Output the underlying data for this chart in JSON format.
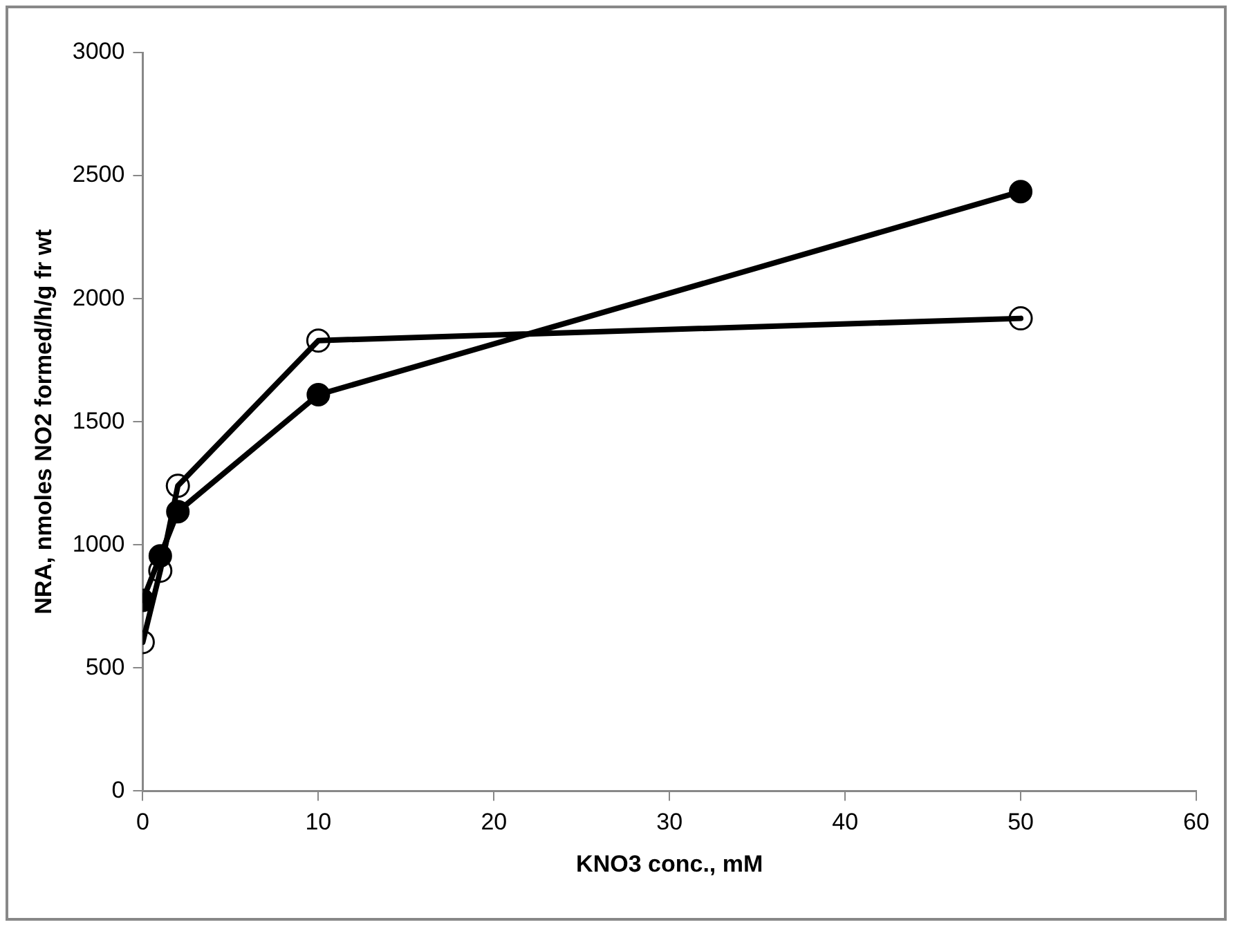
{
  "chart_data": {
    "type": "line",
    "xlabel": "KNO3 conc., mM",
    "ylabel": "NRA, nmoles NO2 formed/h/g fr wt",
    "x": [
      0,
      1,
      2,
      10,
      50
    ],
    "series": [
      {
        "color": "#000000",
        "values": [
          775,
          955,
          1135,
          1610,
          2435
        ]
      },
      {
        "color": "#000000",
        "values": [
          605,
          895,
          1240,
          1830,
          1920
        ]
      }
    ],
    "xlim": [
      0,
      60
    ],
    "xticks": [
      0,
      10,
      20,
      30,
      40,
      50,
      60
    ],
    "ylim": [
      0,
      3000
    ],
    "yticks": [
      0,
      500,
      1000,
      1500,
      2000,
      2500,
      3000
    ],
    "grid": false,
    "legend": false,
    "marker": "circle",
    "line_style": "solid"
  }
}
